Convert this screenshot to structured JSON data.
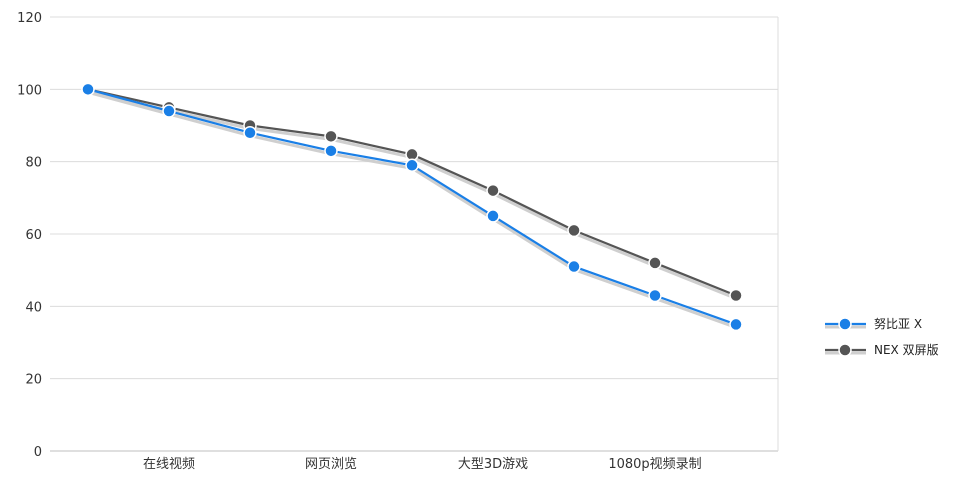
{
  "chart_data": {
    "type": "line",
    "title": "",
    "xlabel": "",
    "ylabel": "",
    "ylim": [
      0,
      120
    ],
    "y_ticks": [
      0,
      20,
      40,
      60,
      80,
      100,
      120
    ],
    "grid": true,
    "legend_position": "right",
    "x_labels_shown": [
      "在线视频",
      "网页浏览",
      "大型3D游戏",
      "1080p视频录制"
    ],
    "series": [
      {
        "name": "努比亚 X",
        "color": "#1a7fe6",
        "values": [
          100,
          94,
          88,
          83,
          79,
          65,
          51,
          43,
          35
        ]
      },
      {
        "name": "NEX 双屏版",
        "color": "#555555",
        "values": [
          100,
          95,
          90,
          87,
          82,
          72,
          61,
          52,
          43
        ]
      }
    ]
  }
}
